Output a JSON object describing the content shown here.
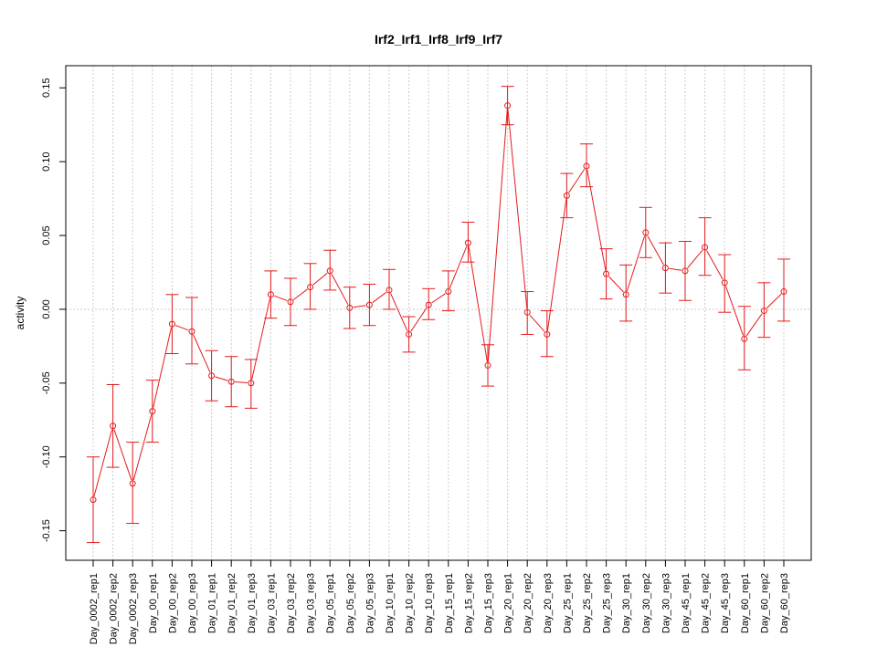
{
  "chart_data": {
    "type": "line",
    "title": "Irf2_Irf1_Irf8_Irf9_Irf7",
    "xlabel": "",
    "ylabel": "activity",
    "ylim": [
      -0.17,
      0.165
    ],
    "yticks": [
      "-0.15",
      "-0.10",
      "-0.05",
      "0.00",
      "0.05",
      "0.10",
      "0.15"
    ],
    "ytick_values": [
      -0.15,
      -0.1,
      -0.05,
      0.0,
      0.05,
      0.1,
      0.15
    ],
    "grid": true,
    "color": "#e41a1c",
    "categories": [
      "Day_0002_rep1",
      "Day_0002_rep2",
      "Day_0002_rep3",
      "Day_00_rep1",
      "Day_00_rep2",
      "Day_00_rep3",
      "Day_01_rep1",
      "Day_01_rep2",
      "Day_01_rep3",
      "Day_03_rep1",
      "Day_03_rep2",
      "Day_03_rep3",
      "Day_05_rep1",
      "Day_05_rep2",
      "Day_05_rep3",
      "Day_10_rep1",
      "Day_10_rep2",
      "Day_10_rep3",
      "Day_15_rep1",
      "Day_15_rep2",
      "Day_15_rep3",
      "Day_20_rep1",
      "Day_20_rep2",
      "Day_20_rep3",
      "Day_25_rep1",
      "Day_25_rep2",
      "Day_25_rep3",
      "Day_30_rep1",
      "Day_30_rep2",
      "Day_30_rep3",
      "Day_45_rep1",
      "Day_45_rep2",
      "Day_45_rep3",
      "Day_60_rep1",
      "Day_60_rep2",
      "Day_60_rep3"
    ],
    "values": [
      -0.129,
      -0.079,
      -0.118,
      -0.069,
      -0.01,
      -0.015,
      -0.045,
      -0.049,
      -0.05,
      0.01,
      0.005,
      0.015,
      0.026,
      0.001,
      0.003,
      0.013,
      -0.017,
      0.003,
      0.012,
      0.045,
      -0.038,
      0.138,
      -0.002,
      -0.017,
      0.077,
      0.097,
      0.024,
      0.01,
      0.052,
      0.028,
      0.026,
      0.042,
      0.018,
      -0.02,
      -0.001,
      0.012
    ],
    "upper": [
      -0.1,
      -0.051,
      -0.09,
      -0.048,
      0.01,
      0.008,
      -0.028,
      -0.032,
      -0.034,
      0.026,
      0.021,
      0.031,
      0.04,
      0.015,
      0.017,
      0.027,
      -0.005,
      0.014,
      0.026,
      0.059,
      -0.024,
      0.151,
      0.012,
      -0.001,
      0.092,
      0.112,
      0.041,
      0.03,
      0.069,
      0.045,
      0.046,
      0.062,
      0.037,
      0.002,
      0.018,
      0.034
    ],
    "lower": [
      -0.158,
      -0.107,
      -0.145,
      -0.09,
      -0.03,
      -0.037,
      -0.062,
      -0.066,
      -0.067,
      -0.006,
      -0.011,
      0.0,
      0.013,
      -0.013,
      -0.011,
      0.0,
      -0.029,
      -0.007,
      -0.001,
      0.032,
      -0.052,
      0.125,
      -0.017,
      -0.032,
      0.062,
      0.083,
      0.007,
      -0.008,
      0.035,
      0.011,
      0.006,
      0.023,
      -0.002,
      -0.041,
      -0.019,
      -0.008
    ]
  }
}
